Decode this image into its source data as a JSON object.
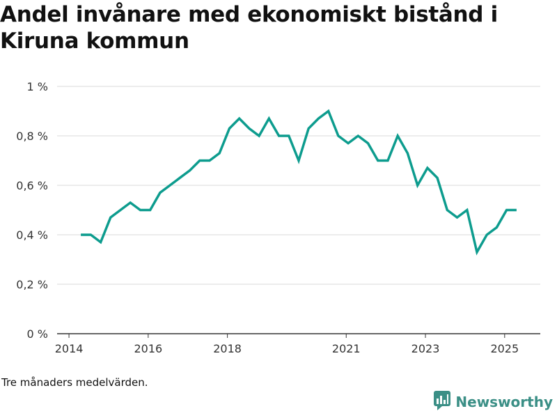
{
  "title": "Andel invånare med ekonomiskt bistånd i Kiruna kommun",
  "footnote": "Tre månaders medelvärden.",
  "brand": {
    "name": "Newsworthy",
    "icon": "bar-chart-logo-icon"
  },
  "colors": {
    "line": "#0d9c8e",
    "grid": "#d9d9d9",
    "axis": "#333333",
    "brand": "#3b8f86"
  },
  "chart_data": {
    "type": "line",
    "title": "Andel invånare med ekonomiskt bistånd i Kiruna kommun",
    "xlabel": "",
    "ylabel": "",
    "x_ticks": [
      {
        "label": "2014",
        "value": 2014.0
      },
      {
        "label": "2016",
        "value": 2016.0
      },
      {
        "label": "2018",
        "value": 2018.0
      },
      {
        "label": "2021",
        "value": 2021.0
      },
      {
        "label": "2023",
        "value": 2023.0
      },
      {
        "label": "2025",
        "value": 2025.0
      }
    ],
    "y_ticks": [
      {
        "label": "0 %",
        "value": 0.0
      },
      {
        "label": "0,2 %",
        "value": 0.2
      },
      {
        "label": "0,4 %",
        "value": 0.4
      },
      {
        "label": "0,6 %",
        "value": 0.6
      },
      {
        "label": "0,8 %",
        "value": 0.8
      },
      {
        "label": "1 %",
        "value": 1.0
      }
    ],
    "xlim": [
      2013.7,
      2025.9
    ],
    "ylim": [
      0,
      1
    ],
    "grid": true,
    "x": [
      2014.3,
      2014.55,
      2014.8,
      2015.05,
      2015.55,
      2015.8,
      2016.05,
      2016.3,
      2016.55,
      2016.8,
      2017.05,
      2017.3,
      2017.55,
      2017.8,
      2018.05,
      2018.3,
      2018.55,
      2018.8,
      2019.05,
      2019.3,
      2019.55,
      2019.8,
      2020.05,
      2020.3,
      2020.55,
      2020.8,
      2021.05,
      2021.3,
      2021.55,
      2021.8,
      2022.05,
      2022.3,
      2022.55,
      2022.8,
      2023.05,
      2023.3,
      2023.55,
      2023.8,
      2024.05,
      2024.3,
      2024.55,
      2024.8,
      2025.05,
      2025.3
    ],
    "series": [
      {
        "values": [
          0.4,
          0.4,
          0.37,
          0.47,
          0.53,
          0.5,
          0.5,
          0.57,
          0.6,
          0.63,
          0.66,
          0.7,
          0.7,
          0.73,
          0.83,
          0.87,
          0.83,
          0.8,
          0.87,
          0.8,
          0.8,
          0.7,
          0.83,
          0.87,
          0.9,
          0.8,
          0.77,
          0.8,
          0.77,
          0.7,
          0.7,
          0.8,
          0.73,
          0.6,
          0.67,
          0.63,
          0.5,
          0.47,
          0.5,
          0.33,
          0.4,
          0.43,
          0.5,
          0.5
        ]
      }
    ]
  }
}
